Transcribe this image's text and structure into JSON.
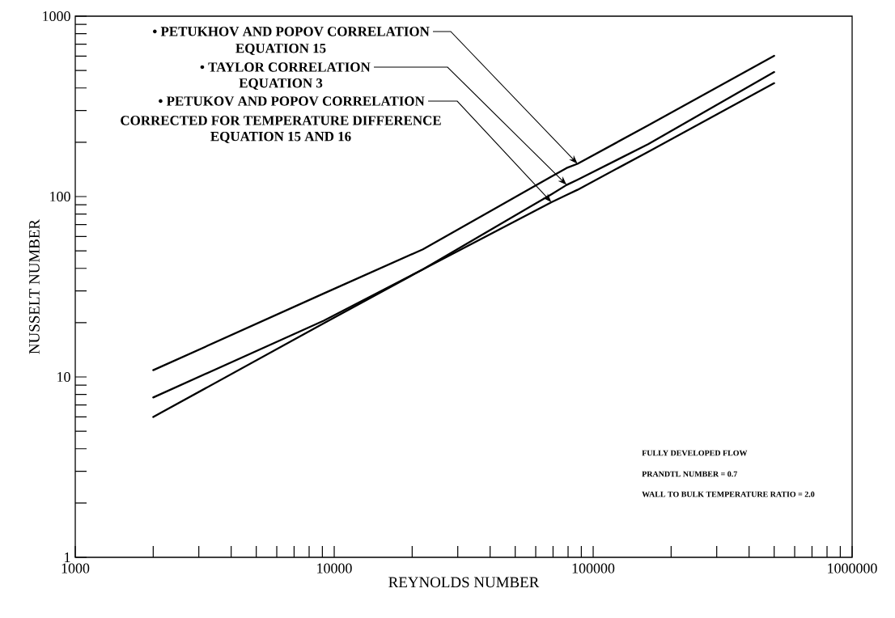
{
  "chart_data": {
    "type": "line",
    "xlabel": "REYNOLDS NUMBER",
    "ylabel": "NUSSELT NUMBER",
    "log": "xy",
    "line_style": "solid",
    "xlim": [
      1000,
      1000000
    ],
    "ylim": [
      1,
      1000
    ],
    "xticks": [
      1000,
      {
        "value": 2000,
        "label": null
      },
      {
        "value": 3000,
        "label": null
      },
      {
        "value": 4000,
        "label": null
      },
      {
        "value": 5000,
        "label": null
      },
      {
        "value": 6000,
        "label": null
      },
      {
        "value": 7000,
        "label": null
      },
      {
        "value": 8000,
        "label": null
      },
      {
        "value": 9000,
        "label": null
      },
      10000,
      {
        "value": 20000,
        "label": null
      },
      {
        "value": 30000,
        "label": null
      },
      {
        "value": 40000,
        "label": null
      },
      {
        "value": 50000,
        "label": null
      },
      {
        "value": 60000,
        "label": null
      },
      {
        "value": 70000,
        "label": null
      },
      {
        "value": 80000,
        "label": null
      },
      {
        "value": 90000,
        "label": null
      },
      100000,
      {
        "value": 200000,
        "label": null
      },
      {
        "value": 300000,
        "label": null
      },
      {
        "value": 400000,
        "label": null
      },
      {
        "value": 500000,
        "label": null
      },
      {
        "value": 600000,
        "label": null
      },
      {
        "value": 700000,
        "label": null
      },
      {
        "value": 800000,
        "label": null
      },
      {
        "value": 900000,
        "label": null
      },
      1000000
    ],
    "yticks": [
      1,
      {
        "value": 2,
        "label": null
      },
      {
        "value": 3,
        "label": null
      },
      {
        "value": 4,
        "label": null
      },
      {
        "value": 5,
        "label": null
      },
      {
        "value": 6,
        "label": null
      },
      {
        "value": 7,
        "label": null
      },
      {
        "value": 8,
        "label": null
      },
      {
        "value": 9,
        "label": null
      },
      10,
      {
        "value": 20,
        "label": null
      },
      {
        "value": 30,
        "label": null
      },
      {
        "value": 40,
        "label": null
      },
      {
        "value": 50,
        "label": null
      },
      {
        "value": 60,
        "label": null
      },
      {
        "value": 70,
        "label": null
      },
      {
        "value": 80,
        "label": null
      },
      {
        "value": 90,
        "label": null
      },
      100,
      {
        "value": 200,
        "label": null
      },
      {
        "value": 300,
        "label": null
      },
      {
        "value": 400,
        "label": null
      },
      {
        "value": 500,
        "label": null
      },
      {
        "value": 600,
        "label": null
      },
      {
        "value": 700,
        "label": null
      },
      {
        "value": 800,
        "label": null
      },
      {
        "value": 900,
        "label": null
      },
      1000
    ],
    "x": [
      2000,
      9100,
      22000,
      69000,
      79000,
      87000,
      163000,
      500000
    ],
    "series": [
      {
        "color": "#000000",
        "values": [
          10.9,
          29,
          51,
          129,
          144,
          152,
          248,
          603
        ]
      },
      {
        "color": "#000000",
        "values": [
          6.0,
          19.8,
          39.5,
          103,
          116,
          124,
          195,
          490
        ]
      },
      {
        "color": "#000000",
        "values": [
          7.7,
          20.5,
          39.5,
          93,
          102,
          109,
          177,
          425
        ]
      }
    ],
    "annotations": [
      {
        "text": "• PETUKHOV AND POPOV CORRELATION",
        "x": 87000,
        "y": 152
      },
      "EQUATION 15",
      {
        "text": "• TAYLOR CORRELATION",
        "x": 79000,
        "y": 116
      },
      "EQUATION 3",
      {
        "text": "• PETUKOV AND POPOV CORRELATION",
        "x": 69000,
        "y": 93
      },
      "CORRECTED FOR TEMPERATURE DIFFERENCE",
      "EQUATION 15 AND 16",
      "FULLY DEVELOPED FLOW",
      "PRANDTL NUMBER = 0.7",
      "WALL TO BULK TEMPERATURE RATIO = 2.0"
    ]
  }
}
